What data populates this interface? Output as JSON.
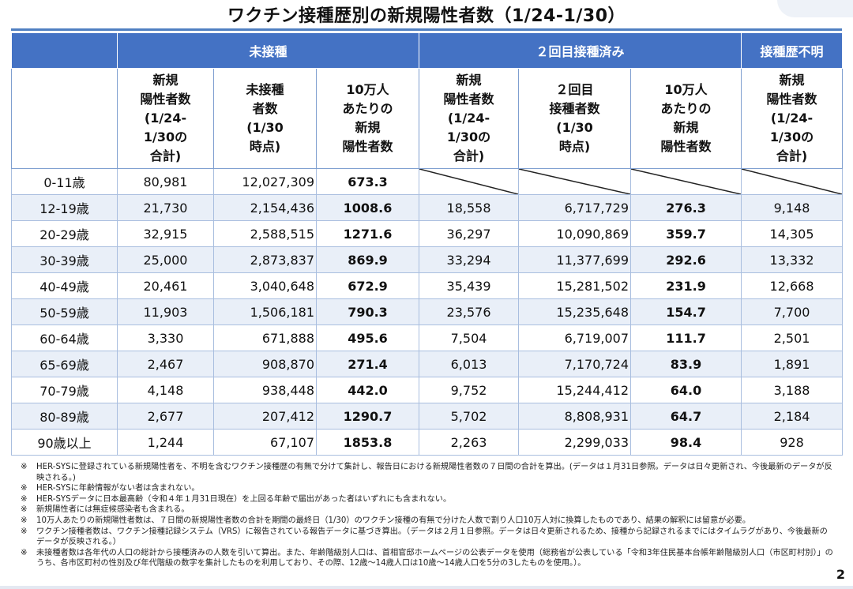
{
  "title": "ワクチン接種歴別の新規陽性者数（1/24-1/30）",
  "groups": {
    "unvaccinated": "未接種",
    "second_dose": "２回目接種済み",
    "unknown": "接種歴不明"
  },
  "subheaders": {
    "new_positive": "新規\n陽性者数\n(1/24-\n1/30の\n合計)",
    "unvacc_count": "未接種\n者数\n(1/30\n時点)",
    "per100k": "10万人\nあたりの\n新規\n陽性者数",
    "second_new_positive": "新規\n陽性者数\n(1/24-\n1/30の\n合計)",
    "second_count": "２回目\n接種者数\n(1/30\n時点)",
    "second_per100k": "10万人\nあたりの\n新規\n陽性者数",
    "unknown_new_positive": "新規\n陽性者数\n(1/24-\n1/30の\n合計)"
  },
  "rows": [
    {
      "age": "0-11歳",
      "un_pos": "80,981",
      "un_cnt": "12,027,309",
      "un_rate": "673.3",
      "v2_pos": "",
      "v2_cnt": "",
      "v2_rate": "",
      "unk_pos": ""
    },
    {
      "age": "12-19歳",
      "un_pos": "21,730",
      "un_cnt": "2,154,436",
      "un_rate": "1008.6",
      "v2_pos": "18,558",
      "v2_cnt": "6,717,729",
      "v2_rate": "276.3",
      "unk_pos": "9,148"
    },
    {
      "age": "20-29歳",
      "un_pos": "32,915",
      "un_cnt": "2,588,515",
      "un_rate": "1271.6",
      "v2_pos": "36,297",
      "v2_cnt": "10,090,869",
      "v2_rate": "359.7",
      "unk_pos": "14,305"
    },
    {
      "age": "30-39歳",
      "un_pos": "25,000",
      "un_cnt": "2,873,837",
      "un_rate": "869.9",
      "v2_pos": "33,294",
      "v2_cnt": "11,377,699",
      "v2_rate": "292.6",
      "unk_pos": "13,332"
    },
    {
      "age": "40-49歳",
      "un_pos": "20,461",
      "un_cnt": "3,040,648",
      "un_rate": "672.9",
      "v2_pos": "35,439",
      "v2_cnt": "15,281,502",
      "v2_rate": "231.9",
      "unk_pos": "12,668"
    },
    {
      "age": "50-59歳",
      "un_pos": "11,903",
      "un_cnt": "1,506,181",
      "un_rate": "790.3",
      "v2_pos": "23,576",
      "v2_cnt": "15,235,648",
      "v2_rate": "154.7",
      "unk_pos": "7,700"
    },
    {
      "age": "60-64歳",
      "un_pos": "3,330",
      "un_cnt": "671,888",
      "un_rate": "495.6",
      "v2_pos": "7,504",
      "v2_cnt": "6,719,007",
      "v2_rate": "111.7",
      "unk_pos": "2,501"
    },
    {
      "age": "65-69歳",
      "un_pos": "2,467",
      "un_cnt": "908,870",
      "un_rate": "271.4",
      "v2_pos": "6,013",
      "v2_cnt": "7,170,724",
      "v2_rate": "83.9",
      "unk_pos": "1,891"
    },
    {
      "age": "70-79歳",
      "un_pos": "4,148",
      "un_cnt": "938,448",
      "un_rate": "442.0",
      "v2_pos": "9,752",
      "v2_cnt": "15,244,412",
      "v2_rate": "64.0",
      "unk_pos": "3,188"
    },
    {
      "age": "80-89歳",
      "un_pos": "2,677",
      "un_cnt": "207,412",
      "un_rate": "1290.7",
      "v2_pos": "5,702",
      "v2_cnt": "8,808,931",
      "v2_rate": "64.7",
      "unk_pos": "2,184"
    },
    {
      "age": "90歳以上",
      "un_pos": "1,244",
      "un_cnt": "67,107",
      "un_rate": "1853.8",
      "v2_pos": "2,263",
      "v2_cnt": "2,299,033",
      "v2_rate": "98.4",
      "unk_pos": "928"
    }
  ],
  "notes": [
    {
      "mark": "※",
      "text": "HER-SYSに登録されている新規陽性者を、不明を含むワクチン接種歴の有無で分けて集計し、報告日における新規陽性者数の７日間の合計を算出。(データは１月31日参照。データは日々更新され、今後最新のデータが反映される。)"
    },
    {
      "mark": "※",
      "text": "HER-SYSに年齢情報がない者は含まれない。"
    },
    {
      "mark": "※",
      "text": "HER-SYSデータに日本最高齢（令和４年１月31日現在）を上回る年齢で届出があった者はいずれにも含まれない。"
    },
    {
      "mark": "※",
      "text": "新規陽性者には無症候感染者も含まれる。"
    },
    {
      "mark": "※",
      "text": "10万人あたりの新規陽性者数は、７日間の新規陽性者数の合計を期間の最終日（1/30）のワクチン接種の有無で分けた人数で割り人口10万人対に換算したものであり、結果の解釈には留意が必要。"
    },
    {
      "mark": "※",
      "text": "ワクチン接種者数は、ワクチン接種記録システム（VRS）に報告されている報告データに基づき算出。（データは２月１日参照。データは日々更新されるため、接種から記録されるまでにはタイムラグがあり、今後最新のデータが反映される。）"
    },
    {
      "mark": "※",
      "text": "未接種者数は各年代の人口の総計から接種済みの人数を引いて算出。また、年齢階級別人口は、首相官邸ホームページの公表データを使用（総務省が公表している「令和3年住民基本台帳年齢階級別人口（市区町村別）」のうち、各市区町村の性別及び年代階級の数字を集計したものを利用しており、その際、12歳～14歳人口は10歳～14歳人口を5分の3したものを使用。）。"
    }
  ],
  "page_number": "2",
  "colors": {
    "header_blue": "#4472c4",
    "rule_blue": "#4f7fc1",
    "row_alt": "#e9eff8"
  }
}
